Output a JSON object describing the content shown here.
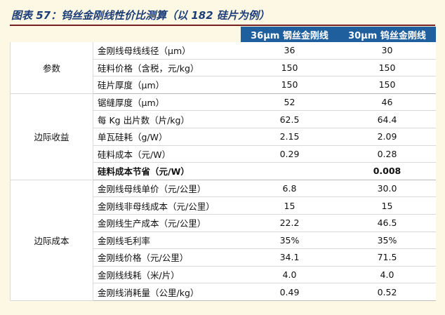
{
  "title": "图表 57：钨丝金刚线性价比测算（以 182 硅片为例）",
  "headers": [
    "",
    "",
    "36μm 钢丝金刚线",
    "30μm 钨丝金刚线"
  ],
  "groups": [
    {
      "name": "参数",
      "rows": [
        {
          "item": "金刚线母线线径（μm）",
          "a": "36",
          "b": "30"
        },
        {
          "item": "硅料价格（含税，元/kg）",
          "a": "150",
          "b": "150"
        },
        {
          "item": "硅片厚度（μm）",
          "a": "150",
          "b": "150"
        }
      ]
    },
    {
      "name": "边际收益",
      "rows": [
        {
          "item": "锯缝厚度（μm）",
          "a": "52",
          "b": "46"
        },
        {
          "item": "每 Kg 出片数（片/kg）",
          "a": "62.5",
          "b": "64.4"
        },
        {
          "item": "单瓦硅耗（g/W）",
          "a": "2.15",
          "b": "2.09"
        },
        {
          "item": "硅料成本（元/W）",
          "a": "0.29",
          "b": "0.28"
        },
        {
          "item": "硅料成本节省（元/W）",
          "a": "",
          "b": "0.008"
        }
      ]
    },
    {
      "name": "边际成本",
      "rows": [
        {
          "item": "金刚线母线单价（元/公里）",
          "a": "6.8",
          "b": "30.0"
        },
        {
          "item": "金刚线非母线成本（元/公里）",
          "a": "15",
          "b": "15"
        },
        {
          "item": "金刚线生产成本（元/公里）",
          "a": "22.2",
          "b": "46.5"
        },
        {
          "item": "金刚线毛利率",
          "a": "35%",
          "b": "35%"
        },
        {
          "item": "金刚线价格（元/公里）",
          "a": "34.1",
          "b": "71.5"
        },
        {
          "item": "金刚线线耗（米/片）",
          "a": "4.0",
          "b": "4.0"
        },
        {
          "item": "金刚线消耗量（公里/kg）",
          "a": "0.49",
          "b": "0.52"
        }
      ]
    }
  ]
}
